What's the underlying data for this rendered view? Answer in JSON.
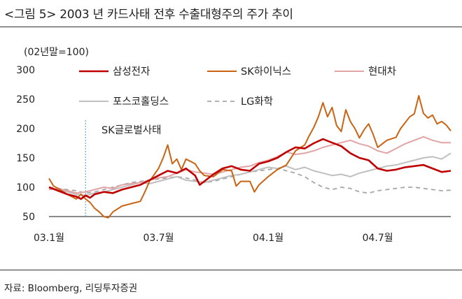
{
  "figure": {
    "title": "<그림 5> 2003 년 카드사태 전후 수출대형주의 주가 추이",
    "source": "자료: Bloomberg, 리딩투자증권"
  },
  "chart_data": {
    "type": "line",
    "title": "",
    "ylabel": "(02년말=100)",
    "xlabel": "",
    "ylim": [
      50,
      300
    ],
    "yticks": [
      50,
      100,
      150,
      200,
      250,
      300
    ],
    "x_ticks": [
      "03.1월",
      "03.7월",
      "04.1월",
      "04.7월"
    ],
    "x_tick_positions": [
      0,
      6,
      12,
      18
    ],
    "xlim": [
      0,
      22
    ],
    "legend_placement": "top",
    "annotation": {
      "text": "SK글로벌사태",
      "x": 2.0
    },
    "series": [
      {
        "name": "삼성전자",
        "color": "#c00000",
        "dash": "",
        "width": 2.6,
        "points": [
          [
            0,
            100
          ],
          [
            0.5,
            94
          ],
          [
            1,
            88
          ],
          [
            1.5,
            84
          ],
          [
            1.75,
            80
          ],
          [
            2,
            86
          ],
          [
            2.25,
            82
          ],
          [
            2.5,
            88
          ],
          [
            3,
            92
          ],
          [
            3.5,
            90
          ],
          [
            4,
            96
          ],
          [
            4.5,
            100
          ],
          [
            5,
            104
          ],
          [
            5.5,
            112
          ],
          [
            6,
            120
          ],
          [
            6.5,
            128
          ],
          [
            7,
            124
          ],
          [
            7.5,
            132
          ],
          [
            8,
            120
          ],
          [
            8.25,
            104
          ],
          [
            8.5,
            110
          ],
          [
            9,
            122
          ],
          [
            9.5,
            132
          ],
          [
            10,
            136
          ],
          [
            10.5,
            130
          ],
          [
            11,
            128
          ],
          [
            11.5,
            140
          ],
          [
            12,
            144
          ],
          [
            12.5,
            150
          ],
          [
            13,
            160
          ],
          [
            13.5,
            168
          ],
          [
            14,
            166
          ],
          [
            14.5,
            175
          ],
          [
            15,
            182
          ],
          [
            15.5,
            176
          ],
          [
            16,
            170
          ],
          [
            16.5,
            158
          ],
          [
            17,
            150
          ],
          [
            17.5,
            146
          ],
          [
            18,
            132
          ],
          [
            18.5,
            128
          ],
          [
            19,
            130
          ],
          [
            19.5,
            134
          ],
          [
            20,
            136
          ],
          [
            20.5,
            138
          ],
          [
            21,
            132
          ],
          [
            21.5,
            126
          ],
          [
            22,
            128
          ]
        ]
      },
      {
        "name": "SK하이닉스",
        "color": "#c86414",
        "dash": "",
        "width": 2.0,
        "points": [
          [
            0,
            115
          ],
          [
            0.25,
            102
          ],
          [
            0.5,
            98
          ],
          [
            1,
            88
          ],
          [
            1.5,
            80
          ],
          [
            1.75,
            88
          ],
          [
            2,
            80
          ],
          [
            2.25,
            74
          ],
          [
            2.5,
            64
          ],
          [
            2.75,
            58
          ],
          [
            3,
            50
          ],
          [
            3.25,
            48
          ],
          [
            3.5,
            58
          ],
          [
            4,
            68
          ],
          [
            4.5,
            72
          ],
          [
            5,
            76
          ],
          [
            5.25,
            92
          ],
          [
            5.5,
            110
          ],
          [
            6,
            132
          ],
          [
            6.25,
            150
          ],
          [
            6.5,
            172
          ],
          [
            6.75,
            140
          ],
          [
            7,
            148
          ],
          [
            7.25,
            130
          ],
          [
            7.5,
            148
          ],
          [
            8,
            140
          ],
          [
            8.25,
            128
          ],
          [
            8.5,
            120
          ],
          [
            9,
            118
          ],
          [
            9.5,
            130
          ],
          [
            10,
            128
          ],
          [
            10.25,
            102
          ],
          [
            10.5,
            110
          ],
          [
            11,
            110
          ],
          [
            11.25,
            92
          ],
          [
            11.5,
            104
          ],
          [
            12,
            118
          ],
          [
            12.5,
            130
          ],
          [
            13,
            138
          ],
          [
            13.5,
            162
          ],
          [
            14,
            172
          ],
          [
            14.25,
            188
          ],
          [
            14.5,
            202
          ],
          [
            14.75,
            220
          ],
          [
            15,
            244
          ],
          [
            15.25,
            220
          ],
          [
            15.5,
            236
          ],
          [
            15.75,
            205
          ],
          [
            16,
            195
          ],
          [
            16.25,
            232
          ],
          [
            16.5,
            212
          ],
          [
            16.75,
            200
          ],
          [
            17,
            184
          ],
          [
            17.25,
            198
          ],
          [
            17.5,
            208
          ],
          [
            17.75,
            190
          ],
          [
            18,
            168
          ],
          [
            18.5,
            180
          ],
          [
            19,
            185
          ],
          [
            19.25,
            200
          ],
          [
            19.5,
            210
          ],
          [
            19.75,
            220
          ],
          [
            20,
            225
          ],
          [
            20.25,
            256
          ],
          [
            20.5,
            226
          ],
          [
            20.75,
            218
          ],
          [
            21,
            223
          ],
          [
            21.25,
            208
          ],
          [
            21.5,
            212
          ],
          [
            21.75,
            206
          ],
          [
            22,
            196
          ]
        ]
      },
      {
        "name": "현대차",
        "color": "#e2a4a4",
        "dash": "",
        "width": 2.0,
        "points": [
          [
            0,
            96
          ],
          [
            0.5,
            98
          ],
          [
            1,
            94
          ],
          [
            1.5,
            90
          ],
          [
            2,
            92
          ],
          [
            2.5,
            96
          ],
          [
            3,
            100
          ],
          [
            3.5,
            98
          ],
          [
            4,
            104
          ],
          [
            4.5,
            106
          ],
          [
            5,
            108
          ],
          [
            5.5,
            112
          ],
          [
            6,
            116
          ],
          [
            6.5,
            118
          ],
          [
            7,
            124
          ],
          [
            7.5,
            130
          ],
          [
            8,
            126
          ],
          [
            8.5,
            124
          ],
          [
            9,
            122
          ],
          [
            9.5,
            126
          ],
          [
            10,
            130
          ],
          [
            10.5,
            134
          ],
          [
            11,
            136
          ],
          [
            11.5,
            142
          ],
          [
            12,
            146
          ],
          [
            12.5,
            152
          ],
          [
            13,
            160
          ],
          [
            13.5,
            156
          ],
          [
            14,
            158
          ],
          [
            14.5,
            162
          ],
          [
            15,
            168
          ],
          [
            15.5,
            172
          ],
          [
            16,
            176
          ],
          [
            16.5,
            180
          ],
          [
            17,
            174
          ],
          [
            17.5,
            170
          ],
          [
            18,
            162
          ],
          [
            18.5,
            158
          ],
          [
            19,
            166
          ],
          [
            19.5,
            174
          ],
          [
            20,
            180
          ],
          [
            20.5,
            186
          ],
          [
            21,
            180
          ],
          [
            21.5,
            176
          ],
          [
            22,
            176
          ]
        ]
      },
      {
        "name": "포스코홀딩스",
        "color": "#bfbfbf",
        "dash": "",
        "width": 2.0,
        "points": [
          [
            0,
            98
          ],
          [
            0.5,
            96
          ],
          [
            1,
            92
          ],
          [
            1.5,
            88
          ],
          [
            2,
            86
          ],
          [
            2.5,
            90
          ],
          [
            3,
            92
          ],
          [
            3.5,
            96
          ],
          [
            4,
            100
          ],
          [
            4.5,
            104
          ],
          [
            5,
            108
          ],
          [
            5.5,
            106
          ],
          [
            6,
            110
          ],
          [
            6.5,
            114
          ],
          [
            7,
            118
          ],
          [
            7.5,
            112
          ],
          [
            8,
            110
          ],
          [
            8.5,
            108
          ],
          [
            9,
            112
          ],
          [
            9.5,
            116
          ],
          [
            10,
            120
          ],
          [
            10.5,
            122
          ],
          [
            11,
            126
          ],
          [
            11.5,
            130
          ],
          [
            12,
            134
          ],
          [
            12.5,
            132
          ],
          [
            13,
            136
          ],
          [
            13.5,
            130
          ],
          [
            14,
            134
          ],
          [
            14.5,
            128
          ],
          [
            15,
            124
          ],
          [
            15.5,
            120
          ],
          [
            16,
            122
          ],
          [
            16.5,
            118
          ],
          [
            17,
            124
          ],
          [
            17.5,
            128
          ],
          [
            18,
            132
          ],
          [
            18.5,
            136
          ],
          [
            19,
            138
          ],
          [
            19.5,
            142
          ],
          [
            20,
            146
          ],
          [
            20.5,
            150
          ],
          [
            21,
            152
          ],
          [
            21.5,
            148
          ],
          [
            22,
            158
          ]
        ]
      },
      {
        "name": "LG화학",
        "color": "#a6a6a6",
        "dash": "6,5",
        "width": 1.8,
        "points": [
          [
            0,
            100
          ],
          [
            0.5,
            98
          ],
          [
            1,
            96
          ],
          [
            1.5,
            94
          ],
          [
            2,
            90
          ],
          [
            2.5,
            92
          ],
          [
            3,
            96
          ],
          [
            3.5,
            100
          ],
          [
            4,
            104
          ],
          [
            4.5,
            108
          ],
          [
            5,
            110
          ],
          [
            5.5,
            112
          ],
          [
            6,
            114
          ],
          [
            6.5,
            116
          ],
          [
            7,
            118
          ],
          [
            7.5,
            116
          ],
          [
            8,
            112
          ],
          [
            8.5,
            108
          ],
          [
            9,
            110
          ],
          [
            9.5,
            114
          ],
          [
            10,
            118
          ],
          [
            10.5,
            122
          ],
          [
            11,
            126
          ],
          [
            11.5,
            128
          ],
          [
            12,
            130
          ],
          [
            12.5,
            132
          ],
          [
            13,
            128
          ],
          [
            13.5,
            124
          ],
          [
            14,
            118
          ],
          [
            14.5,
            108
          ],
          [
            15,
            100
          ],
          [
            15.5,
            96
          ],
          [
            16,
            100
          ],
          [
            16.5,
            98
          ],
          [
            17,
            92
          ],
          [
            17.5,
            90
          ],
          [
            18,
            94
          ],
          [
            18.5,
            96
          ],
          [
            19,
            98
          ],
          [
            19.5,
            100
          ],
          [
            20,
            100
          ],
          [
            20.5,
            98
          ],
          [
            21,
            96
          ],
          [
            21.5,
            94
          ],
          [
            22,
            95
          ]
        ]
      }
    ]
  }
}
